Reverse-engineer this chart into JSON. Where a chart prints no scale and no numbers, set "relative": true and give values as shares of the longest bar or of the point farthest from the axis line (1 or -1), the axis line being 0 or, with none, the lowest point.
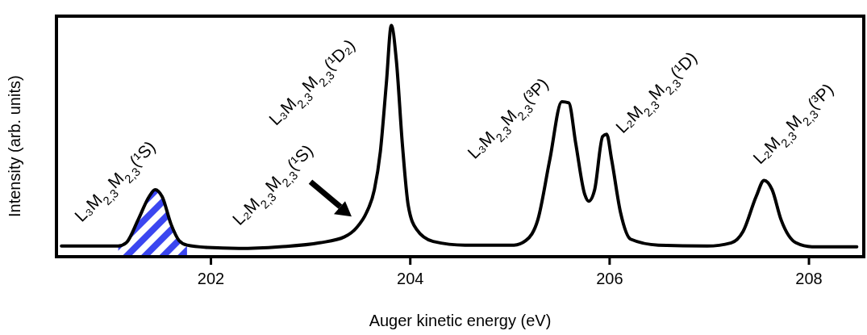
{
  "chart_data": {
    "type": "line",
    "xlabel": "Auger kinetic energy (eV)",
    "ylabel": "Intensity (arb. units)",
    "relative": true,
    "xlim": [
      200.45,
      208.55
    ],
    "xticks": [
      202,
      204,
      206,
      208
    ],
    "grid": false,
    "legend": false,
    "marker": "none",
    "line_style": "solid",
    "series": [
      {
        "type": "area",
        "color": "#3b46f0",
        "x": [
          201.07,
          201.15,
          201.27,
          201.38,
          201.44,
          201.51,
          201.6,
          201.68,
          201.76
        ],
        "values": [
          0.046,
          0.06,
          0.16,
          0.26,
          0.29,
          0.26,
          0.14,
          0.07,
          0.05
        ]
      },
      {
        "type": "line",
        "color": "#000000",
        "x": [
          200.5,
          201.07,
          201.15,
          201.27,
          201.38,
          201.44,
          201.51,
          201.6,
          201.68,
          201.76,
          201.96,
          202.28,
          202.69,
          203.09,
          203.34,
          203.46,
          203.56,
          203.64,
          203.7,
          203.76,
          203.81,
          203.86,
          203.92,
          203.98,
          204.06,
          204.23,
          204.55,
          205.04,
          205.16,
          205.28,
          205.4,
          205.52,
          205.59,
          205.66,
          205.75,
          205.79,
          205.85,
          205.93,
          205.97,
          206.02,
          206.11,
          206.21,
          206.49,
          206.98,
          207.22,
          207.34,
          207.47,
          207.55,
          207.63,
          207.72,
          207.87,
          208.03,
          208.48
        ],
        "values": [
          0.046,
          0.046,
          0.06,
          0.16,
          0.26,
          0.29,
          0.26,
          0.14,
          0.07,
          0.05,
          0.04,
          0.036,
          0.043,
          0.06,
          0.086,
          0.125,
          0.19,
          0.29,
          0.455,
          0.75,
          1.0,
          0.85,
          0.49,
          0.22,
          0.12,
          0.066,
          0.05,
          0.05,
          0.07,
          0.16,
          0.42,
          0.67,
          0.665,
          0.49,
          0.27,
          0.24,
          0.29,
          0.52,
          0.53,
          0.42,
          0.19,
          0.076,
          0.05,
          0.046,
          0.06,
          0.11,
          0.26,
          0.33,
          0.29,
          0.16,
          0.06,
          0.043,
          0.043
        ]
      }
    ],
    "annotations": [
      {
        "text": "L₃M$_{2,3}$M$_{2,3}$(¹S)",
        "x": 201.44,
        "y": 0.29
      },
      {
        "text": "L₂M$_{2,3}$M$_{2,3}$(¹S)",
        "x": 203.46,
        "y": 0.125
      },
      {
        "text": "L₃M$_{2,3}$M$_{2,3}$(¹D₂)",
        "x": 203.81,
        "y": 1.0
      },
      {
        "text": "L₃M$_{2,3}$M$_{2,3}$(³P)",
        "x": 205.52,
        "y": 0.67
      },
      {
        "text": "L₂M$_{2,3}$M$_{2,3}$(¹D)",
        "x": 205.97,
        "y": 0.53
      },
      {
        "text": "L₂M$_{2,3}$M$_{2,3}$(³P)",
        "x": 207.55,
        "y": 0.33
      }
    ]
  }
}
